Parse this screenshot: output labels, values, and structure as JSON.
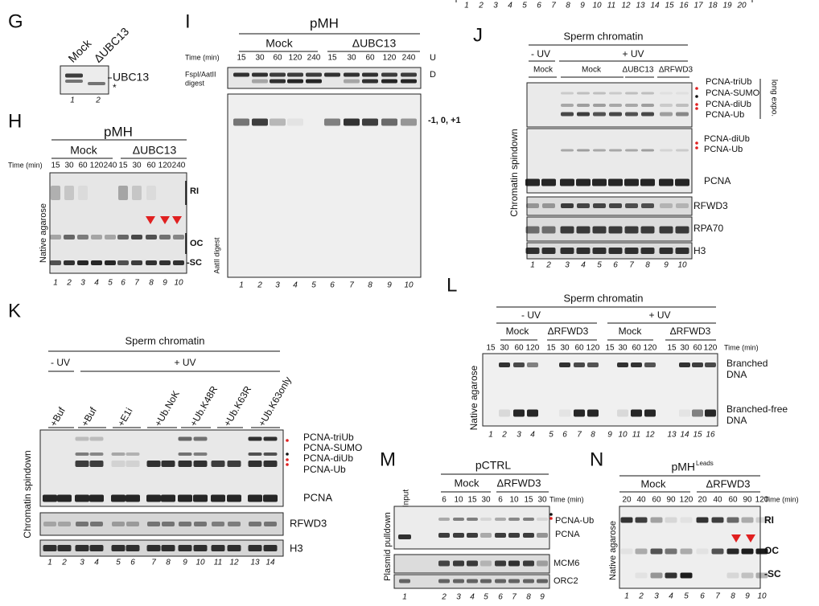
{
  "top_strip": {
    "lane_numbers": [
      1,
      2,
      3,
      4,
      5,
      6,
      7,
      8,
      9,
      10,
      11,
      12,
      13,
      14,
      15,
      16,
      17,
      18,
      19,
      20
    ]
  },
  "panel_g": {
    "letter": "G",
    "lanes": [
      "Mock",
      "ΔUBC13"
    ],
    "bands": [
      "UBC13",
      "*"
    ],
    "lane_numbers": [
      1,
      2
    ]
  },
  "panel_h": {
    "letter": "H",
    "title": "pMH",
    "groups": [
      "Mock",
      "ΔUBC13"
    ],
    "time_label": "Time (min)",
    "times": [
      "15",
      "30",
      "60",
      "120",
      "240",
      "15",
      "30",
      "60",
      "120",
      "240"
    ],
    "side_label": "Native agarose",
    "bands": [
      "RI",
      "OC",
      "-SC"
    ],
    "lane_numbers": [
      1,
      2,
      3,
      4,
      5,
      6,
      7,
      8,
      9,
      10
    ]
  },
  "panel_i": {
    "letter": "I",
    "title": "pMH",
    "groups": [
      "Mock",
      "ΔUBC13"
    ],
    "time_label": "Time (min)",
    "times": [
      "15",
      "30",
      "60",
      "120",
      "240",
      "15",
      "30",
      "60",
      "120",
      "240"
    ],
    "top_label": [
      "FspI/AatII",
      "digest"
    ],
    "bottom_label": "AatII digest",
    "markers": [
      "U",
      "D"
    ],
    "band_label": "-1, 0, +1",
    "lane_numbers": [
      1,
      2,
      3,
      4,
      5,
      6,
      7,
      8,
      9,
      10
    ]
  },
  "panel_j": {
    "letter": "J",
    "title": "Sperm chromatin",
    "conditions": [
      "- UV",
      "+ UV"
    ],
    "groups": [
      "Mock",
      "Mock",
      "ΔUBC13",
      "ΔRFWD3"
    ],
    "side_label": "Chromatin spindown",
    "labels_top": [
      "PCNA-triUb",
      "PCNA-SUMO",
      "PCNA-diUb",
      "PCNA-Ub"
    ],
    "exposure": "long expo.",
    "labels_mid": [
      "PCNA-diUb",
      "PCNA-Ub",
      "PCNA"
    ],
    "blots": [
      "RFWD3",
      "RPA70",
      "H3"
    ],
    "lane_numbers": [
      1,
      2,
      3,
      4,
      5,
      6,
      7,
      8,
      9,
      10
    ]
  },
  "panel_k": {
    "letter": "K",
    "title": "Sperm chromatin",
    "conditions": [
      "- UV",
      "+ UV"
    ],
    "treatments": [
      "+Buf",
      "+Buf",
      "+E1i",
      "+Ub.NoK",
      "+Ub.K48R",
      "+Ub.K63R",
      "+Ub.K63only"
    ],
    "side_label": "Chromatin spindown",
    "labels": [
      "PCNA-triUb",
      "PCNA-SUMO",
      "PCNA-diUb",
      "PCNA-Ub",
      "PCNA"
    ],
    "blots": [
      "RFWD3",
      "H3"
    ],
    "lane_numbers": [
      1,
      2,
      3,
      4,
      5,
      6,
      7,
      8,
      9,
      10,
      11,
      12,
      13,
      14
    ]
  },
  "panel_l": {
    "letter": "L",
    "title": "Sperm chromatin",
    "conditions": [
      "- UV",
      "+ UV"
    ],
    "groups": [
      "Mock",
      "ΔRFWD3",
      "Mock",
      "ΔRFWD3"
    ],
    "times": [
      "15",
      "30",
      "60",
      "120",
      "15",
      "30",
      "60",
      "120",
      "15",
      "30",
      "60",
      "120",
      "15",
      "30",
      "60",
      "120"
    ],
    "time_label": "Time (min)",
    "side_label": "Native agarose",
    "bands": [
      [
        "Branched",
        "DNA"
      ],
      [
        "Branched-free",
        "DNA"
      ]
    ],
    "lane_numbers": [
      1,
      2,
      3,
      4,
      5,
      6,
      7,
      8,
      9,
      10,
      11,
      12,
      13,
      14,
      15,
      16
    ]
  },
  "panel_m": {
    "letter": "M",
    "title": "pCTRL",
    "input": "Input",
    "groups": [
      "Mock",
      "ΔRFWD3"
    ],
    "times": [
      "6",
      "10",
      "15",
      "30",
      "6",
      "10",
      "15",
      "30"
    ],
    "time_label": "Time (min)",
    "side_label": "Plasmid pulldown",
    "labels": [
      "PCNA-Ub",
      "PCNA"
    ],
    "blots": [
      "MCM6",
      "ORC2"
    ],
    "lane_numbers": [
      1,
      2,
      3,
      4,
      5,
      6,
      7,
      8,
      9
    ]
  },
  "panel_n": {
    "letter": "N",
    "title": "pMH",
    "title_sup": "Leads",
    "groups": [
      "Mock",
      "ΔRFWD3"
    ],
    "times": [
      "20",
      "40",
      "60",
      "90",
      "120",
      "20",
      "40",
      "60",
      "90",
      "120"
    ],
    "time_label": "Time (min)",
    "side_label": "Native agarose",
    "bands": [
      "RI",
      "OC",
      "-SC"
    ],
    "lane_numbers": [
      1,
      2,
      3,
      4,
      5,
      6,
      7,
      8,
      9,
      10
    ]
  }
}
